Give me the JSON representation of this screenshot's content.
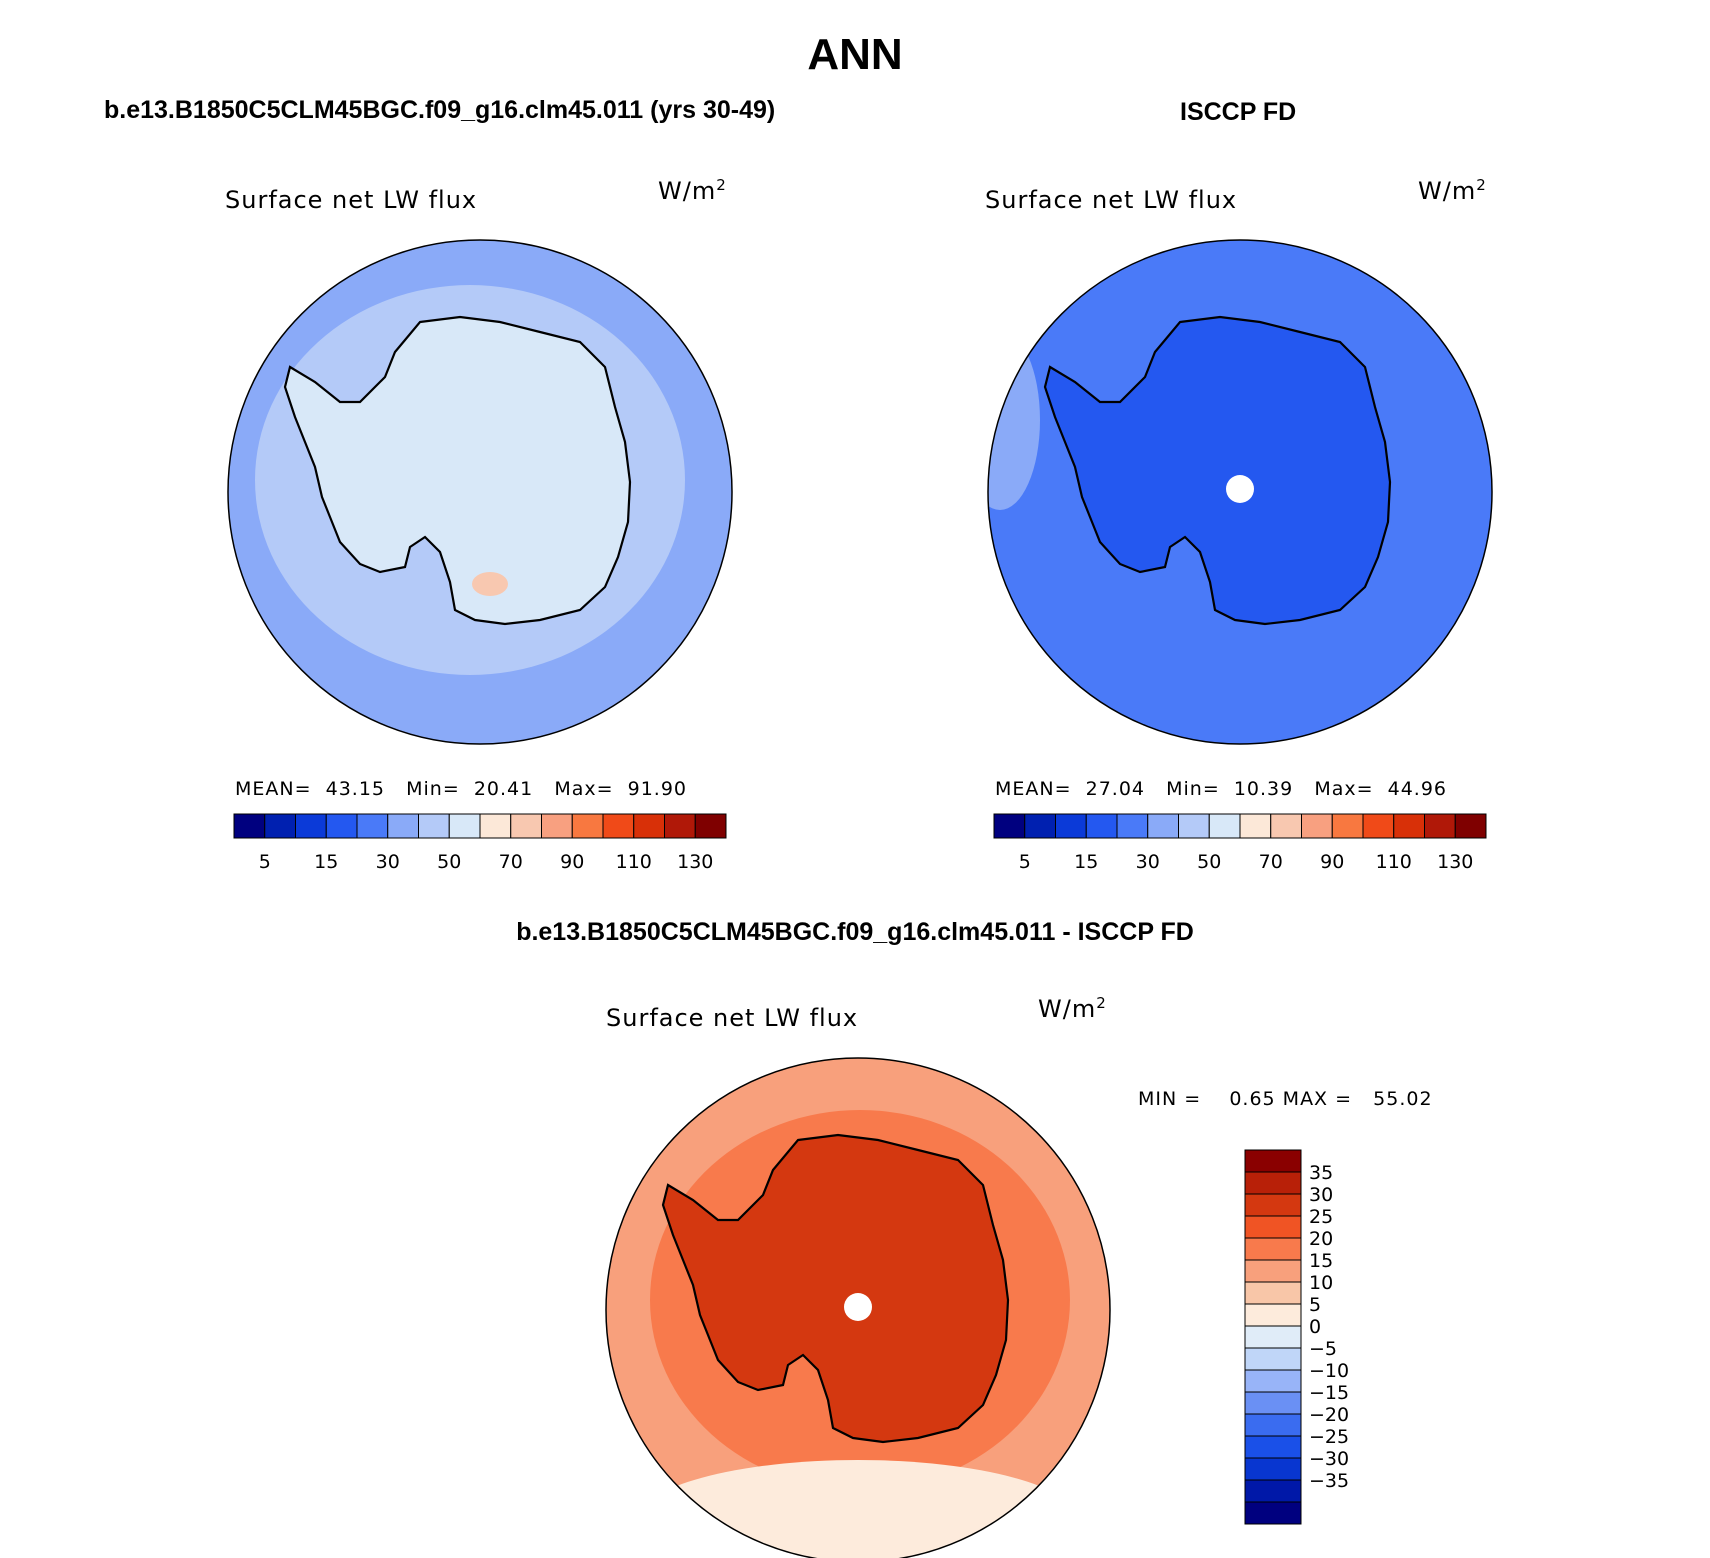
{
  "page": {
    "main_title": "ANN",
    "left_title": "b.e13.B1850C5CLM45BGC.f09_g16.clm45.011 (yrs 30-49)",
    "right_title": "ISCCP FD",
    "diff_title": "b.e13.B1850C5CLM45BGC.f09_g16.clm45.011 - ISCCP FD"
  },
  "panels": {
    "model": {
      "title": "Surface net LW flux",
      "unit": "W/m",
      "unit_sup": "2",
      "stats": "MEAN=  43.15   Min=  20.41   Max=  91.90"
    },
    "obs": {
      "title": "Surface net LW flux",
      "unit": "W/m",
      "unit_sup": "2",
      "stats": "MEAN=  27.04   Min=  10.39   Max=  44.96"
    },
    "diff": {
      "title": "Surface net LW flux",
      "unit": "W/m",
      "unit_sup": "2",
      "stats": "MIN =    0.65 MAX =   55.02"
    }
  },
  "colors": {
    "abs_palette": [
      "#00007f",
      "#0020b0",
      "#0b3ad8",
      "#2458f0",
      "#4a7af8",
      "#8aaaf8",
      "#b4caf8",
      "#d8e8f8",
      "#fce8d8",
      "#f8c8b0",
      "#f8a080",
      "#f87840",
      "#f04a18",
      "#d83008",
      "#b01808",
      "#7f0000"
    ],
    "diff_palette": [
      "#00007f",
      "#0018a8",
      "#0836d0",
      "#1a50e8",
      "#3a6cf0",
      "#6a90f4",
      "#98b4f8",
      "#c0d6f8",
      "#e0ecf8",
      "#fdebdc",
      "#f8c6a8",
      "#f8a07c",
      "#f87a4c",
      "#f05424",
      "#d43810",
      "#b82008",
      "#8a0000"
    ],
    "model_ocean": "#8aaaf8",
    "model_inner": "#b4caf8",
    "model_land": "#d8e8f8",
    "obs_ocean": "#4a7af8",
    "obs_land": "#2458f0",
    "diff_ocean": "#f8a07c",
    "diff_inner": "#f87a4c",
    "diff_land": "#d43810"
  },
  "chart_data": [
    {
      "type": "heatmap",
      "title": "Surface net LW flux",
      "units": "W/m2",
      "projection": "south polar stereographic",
      "stats": {
        "mean": 43.15,
        "min": 20.41,
        "max": 91.9
      },
      "colorbar": {
        "orientation": "horizontal",
        "levels": [
          5,
          10,
          15,
          20,
          30,
          40,
          50,
          60,
          70,
          80,
          90,
          100,
          110,
          120,
          130
        ],
        "tick_labels": [
          "5",
          "15",
          "30",
          "50",
          "70",
          "90",
          "110",
          "130"
        ]
      }
    },
    {
      "type": "heatmap",
      "title": "Surface net LW flux",
      "units": "W/m2",
      "projection": "south polar stereographic",
      "stats": {
        "mean": 27.04,
        "min": 10.39,
        "max": 44.96
      },
      "colorbar": {
        "orientation": "horizontal",
        "levels": [
          5,
          10,
          15,
          20,
          30,
          40,
          50,
          60,
          70,
          80,
          90,
          100,
          110,
          120,
          130
        ],
        "tick_labels": [
          "5",
          "15",
          "30",
          "50",
          "70",
          "90",
          "110",
          "130"
        ]
      }
    },
    {
      "type": "heatmap",
      "title": "Surface net LW flux",
      "units": "W/m2",
      "projection": "south polar stereographic",
      "stats": {
        "min": 0.65,
        "max": 55.02
      },
      "colorbar": {
        "orientation": "vertical",
        "levels": [
          -40,
          -35,
          -30,
          -25,
          -20,
          -15,
          -10,
          -5,
          0,
          5,
          10,
          15,
          20,
          25,
          30,
          35,
          40
        ],
        "tick_labels": [
          "35",
          "30",
          "25",
          "20",
          "15",
          "10",
          "5",
          "0",
          "−5",
          "−10",
          "−15",
          "−20",
          "−25",
          "−30",
          "−35"
        ]
      }
    }
  ]
}
